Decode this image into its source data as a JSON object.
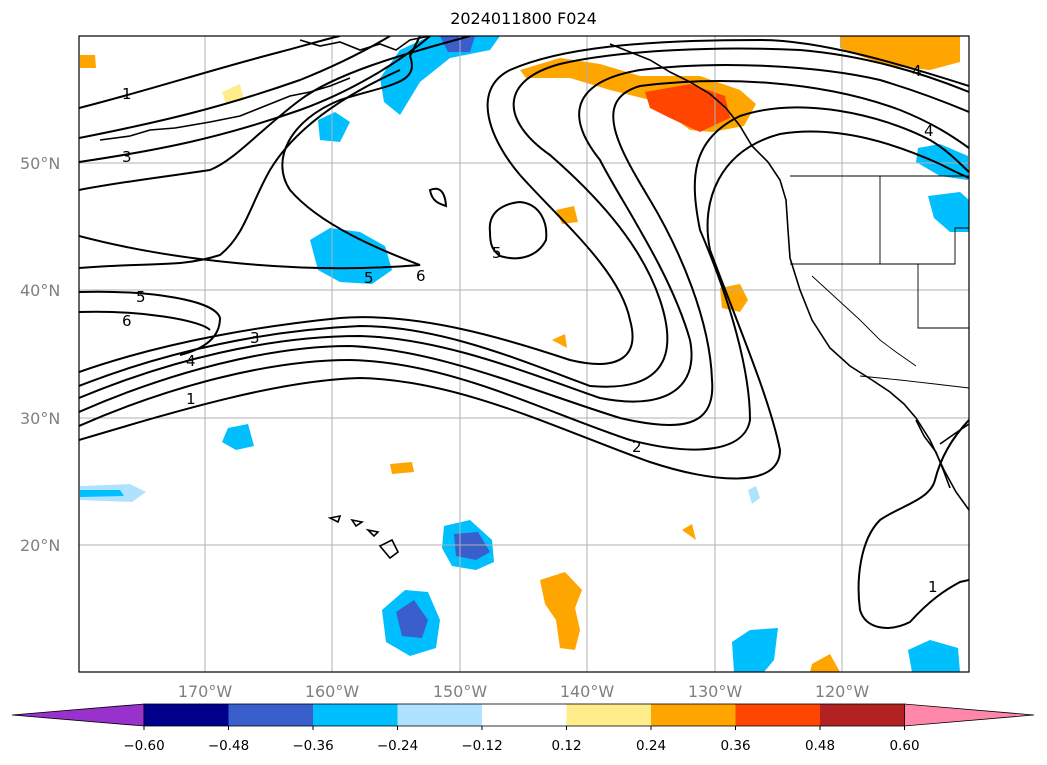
{
  "title": "2024011800 F024",
  "lat_labels": [
    "50°N",
    "40°N",
    "30°N",
    "20°N"
  ],
  "lon_labels": [
    "170°W",
    "160°W",
    "150°W",
    "140°W",
    "130°W",
    "120°W"
  ],
  "contour_labels": [
    "1",
    "3",
    "5",
    "6",
    "4",
    "3",
    "1",
    "5",
    "6",
    "5",
    "2",
    "1",
    "4",
    "4"
  ],
  "colorbar": {
    "ticks": [
      "−0.60",
      "−0.48",
      "−0.36",
      "−0.24",
      "−0.12",
      "0.12",
      "0.24",
      "0.36",
      "0.48",
      "0.60"
    ],
    "colors": [
      "#9932cc",
      "#00008b",
      "#3a5fcd",
      "#00bfff",
      "#b0e2ff",
      "#ffffff",
      "#ffec8b",
      "#ffa500",
      "#ff4500",
      "#b22222",
      "#ff88aa"
    ]
  }
}
